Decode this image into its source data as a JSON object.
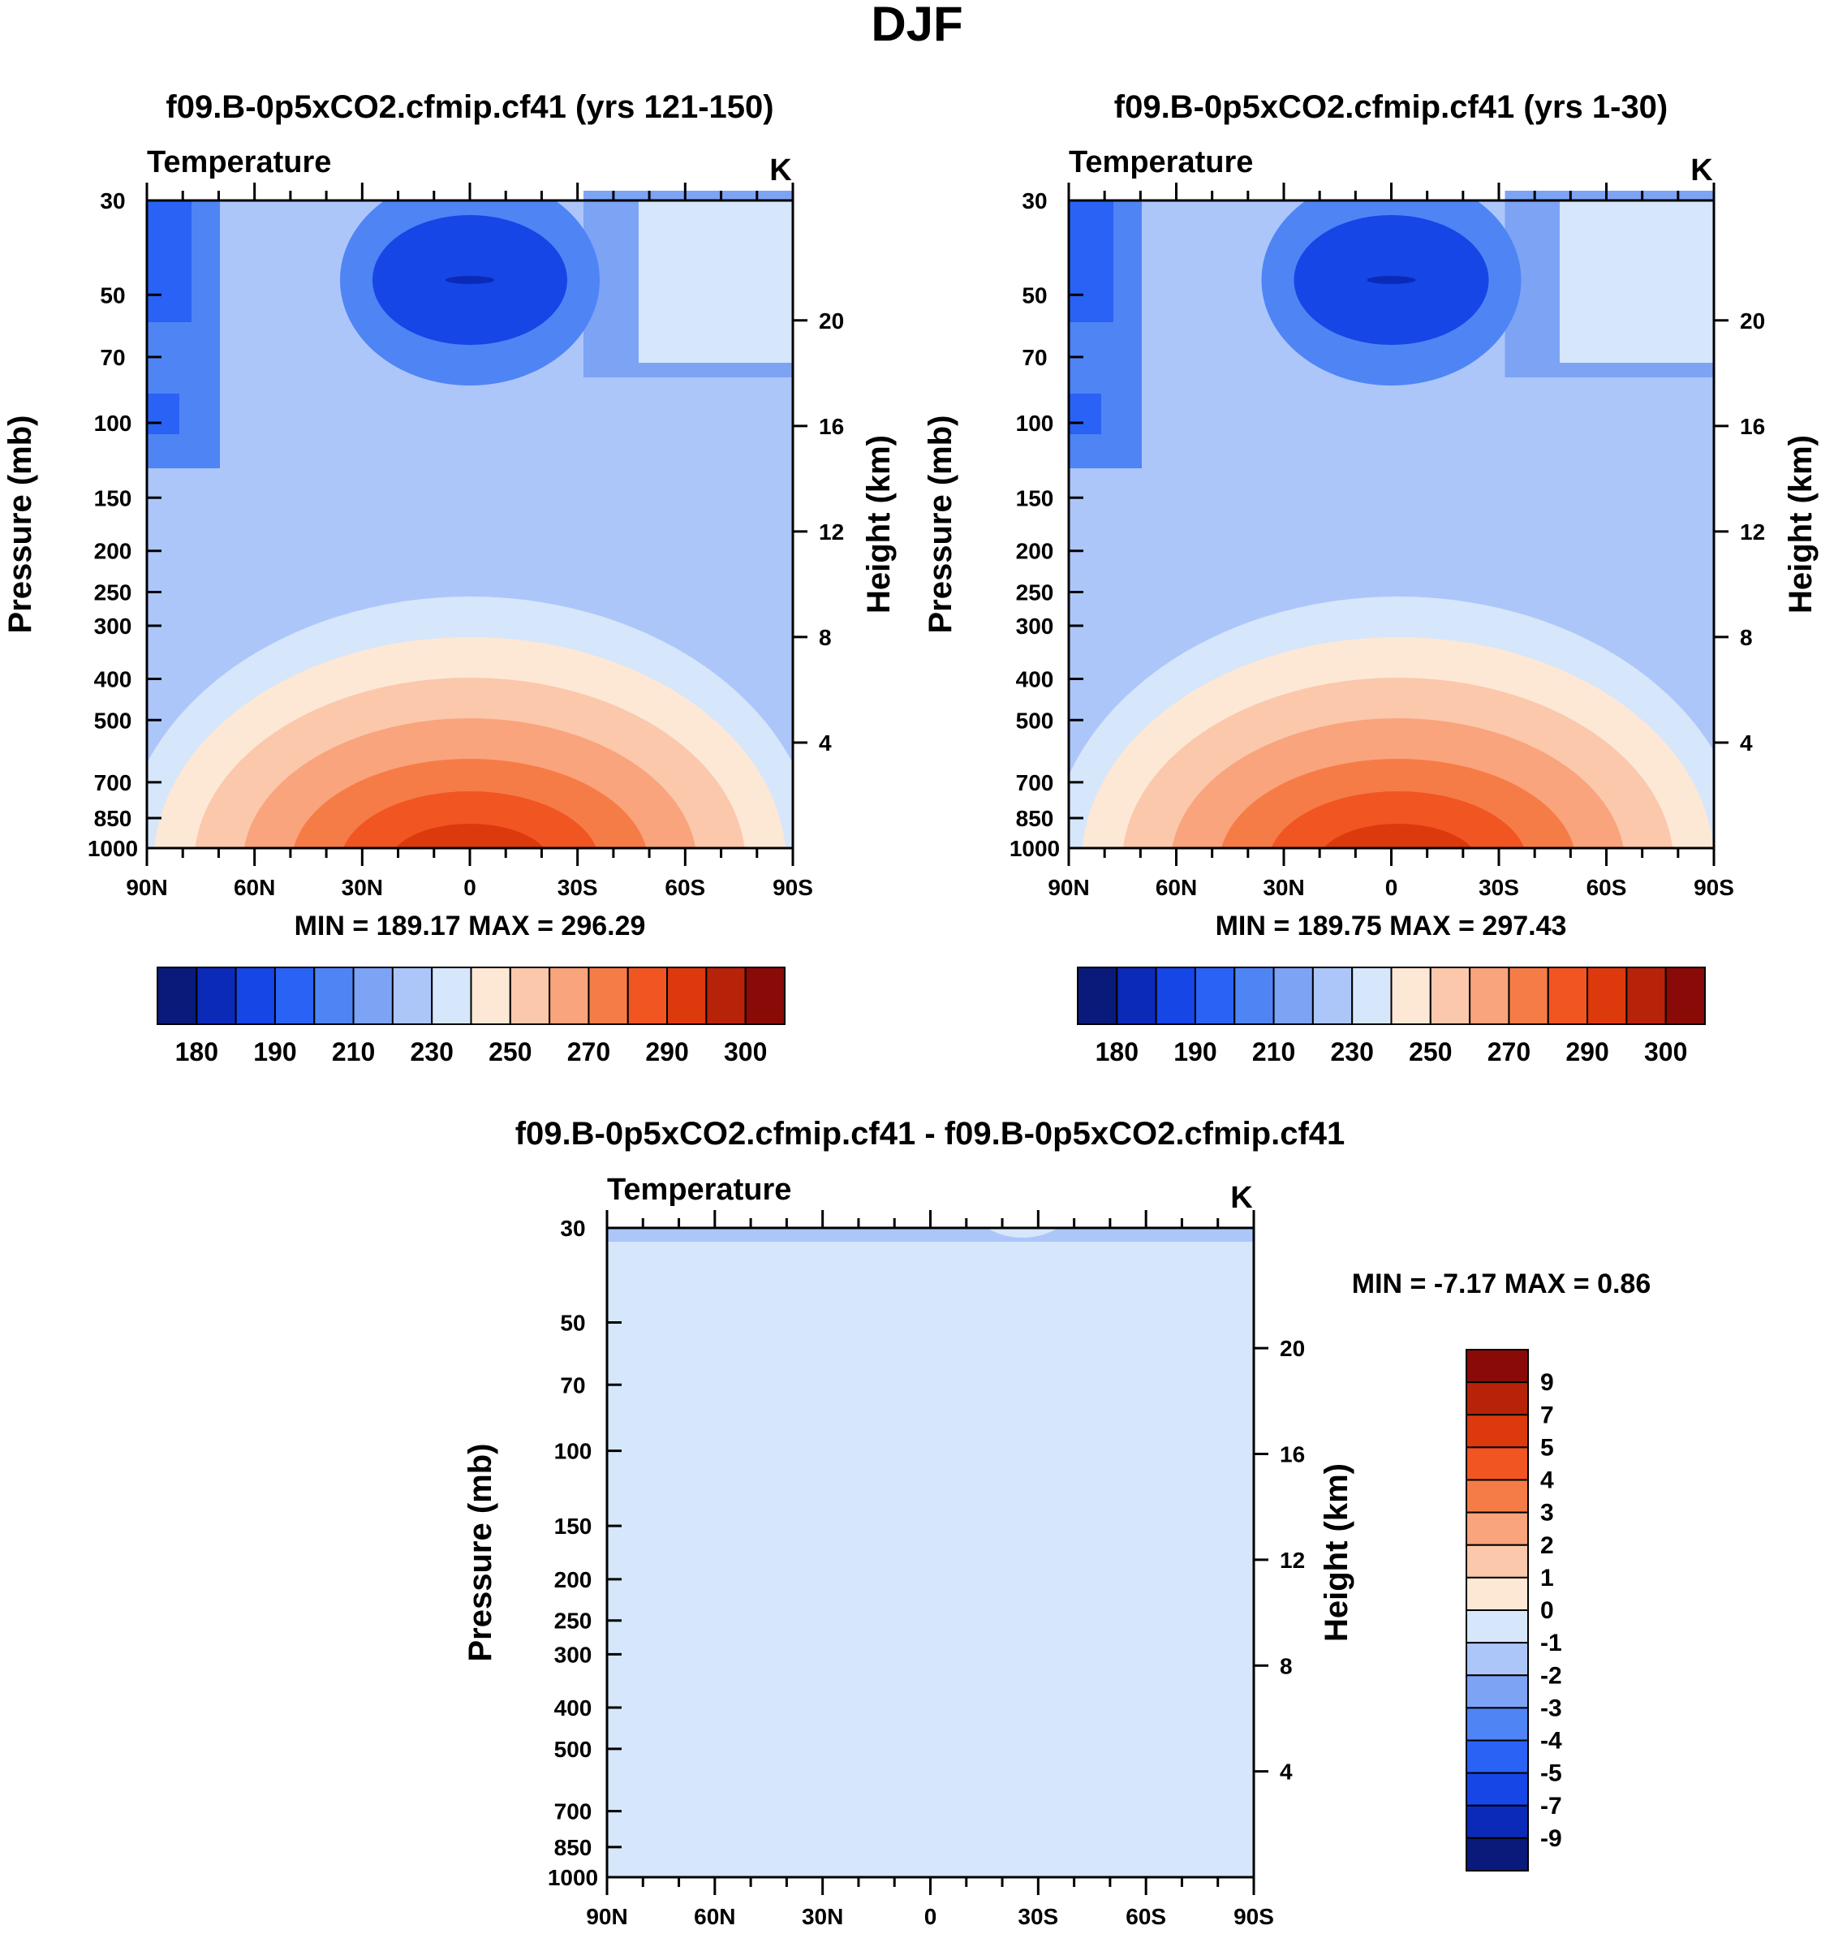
{
  "page_title": "DJF",
  "colors": {
    "abs_palette": [
      "#0a1a7a",
      "#0b2ab8",
      "#1646e6",
      "#2a62f5",
      "#4f84f5",
      "#7da3f5",
      "#adc6fa",
      "#d6e6fb",
      "#fde8d6",
      "#fbc8ac",
      "#f9a47c",
      "#f67c47",
      "#f05522",
      "#dc3a0d",
      "#b72308",
      "#8a0a07"
    ],
    "diff_palette": [
      "#0a1a7a",
      "#0b2ab8",
      "#1646e6",
      "#2a62f5",
      "#4f84f5",
      "#7da3f5",
      "#adc6fa",
      "#d6e6fb",
      "#fde8d6",
      "#fbc8ac",
      "#f9a47c",
      "#f67c47",
      "#f05522",
      "#dc3a0d",
      "#b72308",
      "#8a0a07"
    ]
  },
  "chart_data": [
    {
      "type": "heatmap",
      "panel": "test",
      "title": "f09.B-0p5xCO2.cfmip.cf41 (yrs 121-150)",
      "field": "Temperature",
      "units": "K",
      "xlabel": "",
      "ylabel": "Pressure (mb)",
      "y2label": "Height (km)",
      "x_ticks": [
        "90N",
        "60N",
        "30N",
        "0",
        "30S",
        "60S",
        "90S"
      ],
      "latitude_range": [
        90,
        -90
      ],
      "pressure_ticks": [
        30,
        50,
        70,
        100,
        150,
        200,
        250,
        300,
        400,
        500,
        700,
        850,
        1000
      ],
      "height_ticks": [
        20,
        16,
        12,
        8,
        4
      ],
      "ylim": [
        1000,
        30
      ],
      "stats": "MIN = 189.17  MAX = 296.29",
      "min": 189.17,
      "max": 296.29,
      "colorbar_labels": [
        "180",
        "190",
        "210",
        "230",
        "250",
        "270",
        "290",
        "300"
      ],
      "contour_levels": [
        180,
        185,
        190,
        200,
        210,
        220,
        230,
        240,
        250,
        260,
        270,
        280,
        290,
        295,
        300
      ]
    },
    {
      "type": "heatmap",
      "panel": "control",
      "title": "f09.B-0p5xCO2.cfmip.cf41 (yrs 1-30)",
      "field": "Temperature",
      "units": "K",
      "xlabel": "",
      "ylabel": "Pressure (mb)",
      "y2label": "Height (km)",
      "x_ticks": [
        "90N",
        "60N",
        "30N",
        "0",
        "30S",
        "60S",
        "90S"
      ],
      "latitude_range": [
        90,
        -90
      ],
      "pressure_ticks": [
        30,
        50,
        70,
        100,
        150,
        200,
        250,
        300,
        400,
        500,
        700,
        850,
        1000
      ],
      "height_ticks": [
        20,
        16,
        12,
        8,
        4
      ],
      "ylim": [
        1000,
        30
      ],
      "stats": "MIN = 189.75  MAX = 297.43",
      "min": 189.75,
      "max": 297.43,
      "colorbar_labels": [
        "180",
        "190",
        "210",
        "230",
        "250",
        "270",
        "290",
        "300"
      ],
      "contour_levels": [
        180,
        185,
        190,
        200,
        210,
        220,
        230,
        240,
        250,
        260,
        270,
        280,
        290,
        295,
        300
      ]
    },
    {
      "type": "heatmap",
      "panel": "difference",
      "title": "f09.B-0p5xCO2.cfmip.cf41 - f09.B-0p5xCO2.cfmip.cf41",
      "field": "Temperature",
      "units": "K",
      "xlabel": "",
      "ylabel": "Pressure (mb)",
      "y2label": "Height (km)",
      "x_ticks": [
        "90N",
        "60N",
        "30N",
        "0",
        "30S",
        "60S",
        "90S"
      ],
      "latitude_range": [
        90,
        -90
      ],
      "pressure_ticks": [
        30,
        50,
        70,
        100,
        150,
        200,
        250,
        300,
        400,
        500,
        700,
        850,
        1000
      ],
      "height_ticks": [
        20,
        16,
        12,
        8,
        4
      ],
      "ylim": [
        1000,
        30
      ],
      "stats": "MIN =  -7.17  MAX =   0.86",
      "min": -7.17,
      "max": 0.86,
      "colorbar_labels": [
        "9",
        "7",
        "5",
        "4",
        "3",
        "2",
        "1",
        "0",
        "-1",
        "-2",
        "-3",
        "-4",
        "-5",
        "-7",
        "-9"
      ],
      "contour_levels": [
        -9,
        -7,
        -5,
        -4,
        -3,
        -2,
        -1,
        0,
        1,
        2,
        3,
        4,
        5,
        7,
        9
      ]
    }
  ]
}
